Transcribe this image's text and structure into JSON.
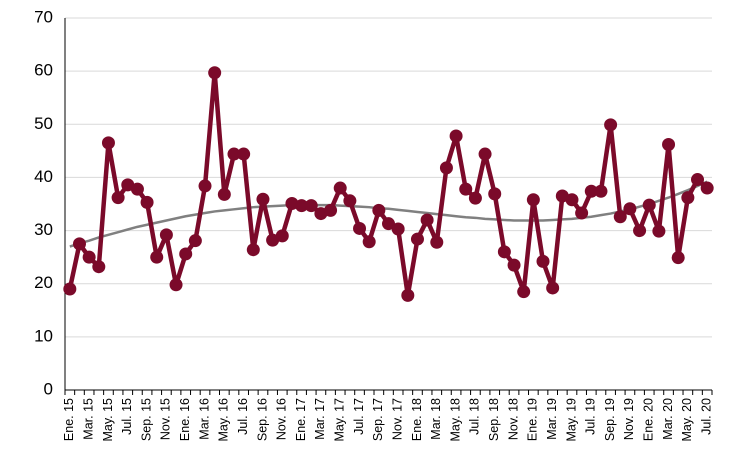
{
  "chart_data": {
    "type": "line",
    "categories": [
      "Ene. 15",
      null,
      "Mar. 15",
      null,
      "May. 15",
      null,
      "Jul. 15",
      null,
      "Sep. 15",
      null,
      "Nov. 15",
      null,
      "Ene. 16",
      null,
      "Mar. 16",
      null,
      "May. 16",
      null,
      "Jul. 16",
      null,
      "Sep. 16",
      null,
      "Nov. 16",
      null,
      "Ene. 17",
      null,
      "Mar. 17",
      null,
      "May. 17",
      null,
      "Jul. 17",
      null,
      "Sep. 17",
      null,
      "Nov. 17",
      null,
      "Ene. 18",
      null,
      "Mar. 18",
      null,
      "May. 18",
      null,
      "Jul. 18",
      null,
      "Sep. 18",
      null,
      "Nov. 18",
      null,
      "Ene. 19",
      null,
      "Mar. 19",
      null,
      "May. 19",
      null,
      "Jul. 19",
      null,
      "Sep. 19",
      null,
      "Nov. 19",
      null,
      "Ene. 20",
      null,
      "Mar. 20",
      null,
      "May. 20",
      null,
      "Jul. 20"
    ],
    "series": [
      {
        "color": "#7b0a2a",
        "markers": true,
        "values": [
          19,
          27.5,
          25,
          23.2,
          46.5,
          36.2,
          38.6,
          37.8,
          35.3,
          25,
          29.2,
          19.8,
          25.6,
          28.1,
          38.4,
          59.7,
          36.8,
          44.4,
          44.4,
          26.4,
          35.9,
          28.2,
          29,
          35.1,
          34.7,
          34.7,
          33.2,
          33.8,
          38,
          35.6,
          30.4,
          27.9,
          33.8,
          31.3,
          30.3,
          17.8,
          28.4,
          32,
          27.8,
          41.8,
          47.8,
          37.8,
          36.1,
          44.4,
          36.9,
          26,
          23.5,
          18.5,
          35.8,
          24.2,
          19.2,
          36.5,
          35.8,
          33.3,
          37.4,
          37.4,
          49.9,
          32.6,
          34.1,
          30,
          34.8,
          29.9,
          46.2,
          24.9,
          36.2,
          39.6,
          38
        ]
      },
      {
        "color": "#808080",
        "markers": false,
        "values": [
          27.0,
          27.6,
          28.1,
          28.7,
          29.2,
          29.7,
          30.2,
          30.7,
          31.1,
          31.5,
          31.9,
          32.3,
          32.7,
          33.0,
          33.3,
          33.6,
          33.8,
          34.0,
          34.2,
          34.4,
          34.5,
          34.6,
          34.7,
          34.8,
          34.8,
          34.8,
          34.8,
          34.8,
          34.7,
          34.6,
          34.5,
          34.4,
          34.2,
          34.1,
          33.9,
          33.7,
          33.5,
          33.3,
          33.1,
          32.9,
          32.7,
          32.5,
          32.4,
          32.2,
          32.1,
          32.0,
          31.9,
          31.9,
          31.9,
          31.9,
          32.0,
          32.1,
          32.2,
          32.4,
          32.6,
          32.9,
          33.2,
          33.6,
          34.0,
          34.5,
          35.0,
          35.6,
          36.2,
          36.9,
          37.6,
          38.4,
          39.2
        ]
      }
    ],
    "ylim": [
      0,
      70
    ],
    "yticks": [
      0,
      10,
      20,
      30,
      40,
      50,
      60,
      70
    ],
    "grid": true
  }
}
